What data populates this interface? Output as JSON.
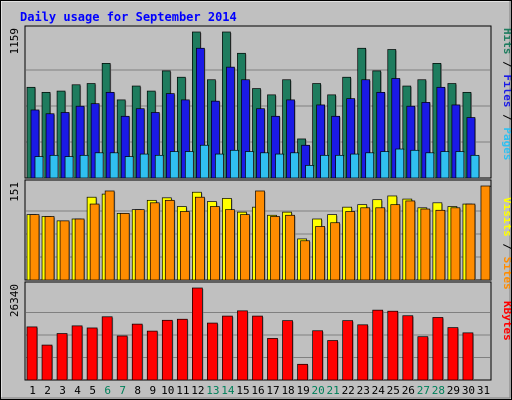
{
  "chart_data": [
    {
      "type": "bar",
      "title": "Daily usage for September 2014",
      "categories": [
        "1",
        "2",
        "3",
        "4",
        "5",
        "6",
        "7",
        "8",
        "9",
        "10",
        "11",
        "12",
        "13",
        "14",
        "15",
        "16",
        "17",
        "18",
        "19",
        "20",
        "21",
        "22",
        "23",
        "24",
        "25",
        "26",
        "27",
        "28",
        "29",
        "30",
        "31"
      ],
      "weekend_categories": [
        "6",
        "7",
        "13",
        "14",
        "20",
        "21",
        "27",
        "28"
      ],
      "ylim": [
        0,
        1159
      ],
      "max_label": "1159",
      "legend": [
        "Pages",
        "Files",
        "Hits"
      ],
      "series": [
        {
          "name": "Hits",
          "color": "#1e7c5e",
          "values": [
            720,
            680,
            690,
            740,
            750,
            910,
            620,
            730,
            690,
            850,
            800,
            1159,
            780,
            1159,
            990,
            710,
            660,
            780,
            310,
            750,
            660,
            800,
            1030,
            850,
            1020,
            730,
            780,
            910,
            750,
            680,
            null
          ]
        },
        {
          "name": "Files",
          "color": "#1a1ae6",
          "values": [
            540,
            510,
            520,
            570,
            590,
            680,
            490,
            550,
            520,
            670,
            620,
            1030,
            610,
            880,
            780,
            550,
            490,
            620,
            260,
            580,
            490,
            630,
            780,
            680,
            790,
            570,
            600,
            720,
            580,
            480,
            null
          ]
        },
        {
          "name": "Pages",
          "color": "#30c0f0",
          "values": [
            170,
            180,
            170,
            180,
            200,
            200,
            170,
            190,
            180,
            210,
            210,
            260,
            190,
            220,
            210,
            200,
            190,
            200,
            100,
            180,
            180,
            190,
            200,
            210,
            230,
            220,
            200,
            210,
            210,
            180,
            null
          ]
        }
      ]
    },
    {
      "type": "bar",
      "ylim": [
        0,
        151
      ],
      "max_label": "151",
      "legend": [
        "Sites",
        "Visits"
      ],
      "series": [
        {
          "name": "Visits",
          "color": "#ffff00",
          "values": [
            105,
            102,
            95,
            98,
            133,
            138,
            107,
            113,
            128,
            132,
            118,
            141,
            126,
            131,
            109,
            117,
            104,
            109,
            66,
            98,
            105,
            117,
            121,
            129,
            135,
            130,
            116,
            124,
            118,
            122,
            null
          ]
        },
        {
          "name": "Sites",
          "color": "#ff8c00",
          "values": [
            105,
            102,
            95,
            98,
            122,
            143,
            107,
            113,
            124,
            128,
            110,
            133,
            118,
            113,
            105,
            143,
            102,
            104,
            63,
            86,
            92,
            110,
            116,
            116,
            121,
            127,
            114,
            112,
            116,
            122,
            151
          ]
        }
      ]
    },
    {
      "type": "bar",
      "ylim": [
        0,
        26340
      ],
      "max_label": "26340",
      "legend": [
        "KBytes"
      ],
      "series": [
        {
          "name": "KBytes",
          "color": "#ff0000",
          "values": [
            15200,
            10000,
            13300,
            15500,
            14900,
            18100,
            12600,
            16000,
            14000,
            17100,
            17400,
            26340,
            16300,
            18300,
            19800,
            18300,
            11900,
            17000,
            4500,
            14100,
            11300,
            17000,
            15800,
            20000,
            19700,
            18400,
            12400,
            17900,
            15000,
            13500,
            null
          ]
        }
      ]
    }
  ]
}
